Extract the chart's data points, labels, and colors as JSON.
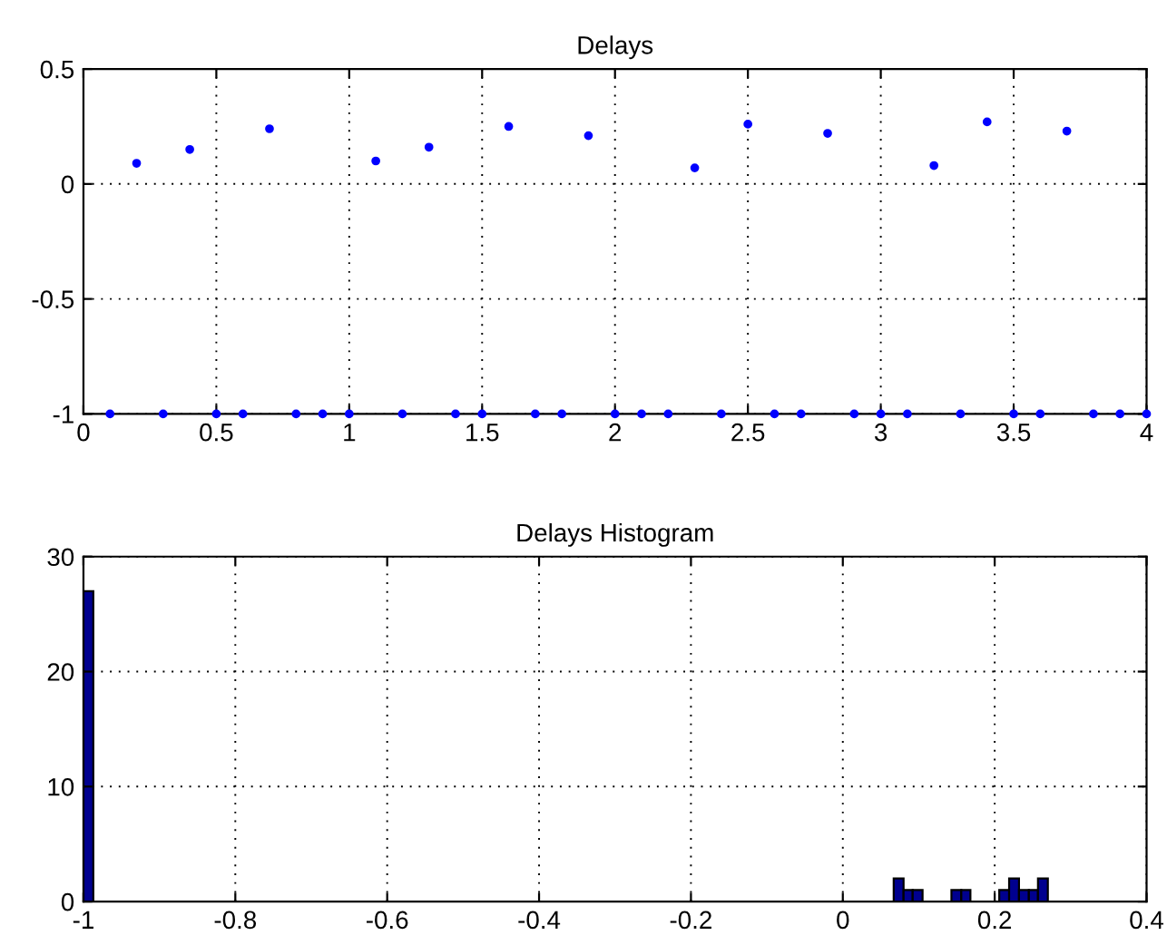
{
  "chart_data": [
    {
      "type": "scatter",
      "title": "Delays",
      "x": [
        0.1,
        0.2,
        0.3,
        0.4,
        0.5,
        0.6,
        0.7,
        0.8,
        0.9,
        1.0,
        1.1,
        1.2,
        1.3,
        1.4,
        1.5,
        1.6,
        1.7,
        1.8,
        1.9,
        2.0,
        2.1,
        2.2,
        2.3,
        2.4,
        2.5,
        2.6,
        2.7,
        2.8,
        2.9,
        3.0,
        3.1,
        3.2,
        3.3,
        3.4,
        3.5,
        3.6,
        3.7,
        3.8,
        3.9,
        4.0
      ],
      "series": [
        {
          "color": "#0000ff",
          "values": [
            -1,
            0.09,
            -1,
            0.15,
            -1,
            -1,
            0.24,
            -1,
            -1,
            -1,
            0.1,
            -1,
            0.16,
            -1,
            -1,
            0.25,
            -1,
            -1,
            0.21,
            -1,
            -1,
            -1,
            0.07,
            -1,
            0.26,
            -1,
            -1,
            0.22,
            -1,
            -1,
            -1,
            0.08,
            -1,
            0.27,
            -1,
            -1,
            0.23,
            -1,
            -1,
            -1
          ]
        }
      ],
      "marker": "circle",
      "xlim": [
        0,
        4
      ],
      "ylim": [
        -1,
        0.5
      ],
      "xticks": [
        0,
        0.5,
        1,
        1.5,
        2,
        2.5,
        3,
        3.5,
        4
      ],
      "yticks": [
        -1,
        -0.5,
        0,
        0.5
      ],
      "grid": true
    },
    {
      "type": "histogram",
      "title": "Delays Histogram",
      "bins": [
        -1,
        -0.987,
        0.067,
        0.08,
        0.092,
        0.105,
        0.143,
        0.156,
        0.168,
        0.206,
        0.219,
        0.232,
        0.245,
        0.257,
        0.27
      ],
      "values": [
        27,
        0,
        2,
        1,
        1,
        0,
        1,
        1,
        0,
        1,
        2,
        1,
        1,
        2
      ],
      "color": "#00008f",
      "xlim": [
        -1,
        0.4
      ],
      "ylim": [
        0,
        30
      ],
      "xticks": [
        -1,
        -0.8,
        -0.6,
        -0.4,
        -0.2,
        0,
        0.2,
        0.4
      ],
      "yticks": [
        0,
        10,
        20,
        30
      ],
      "grid": true
    }
  ]
}
